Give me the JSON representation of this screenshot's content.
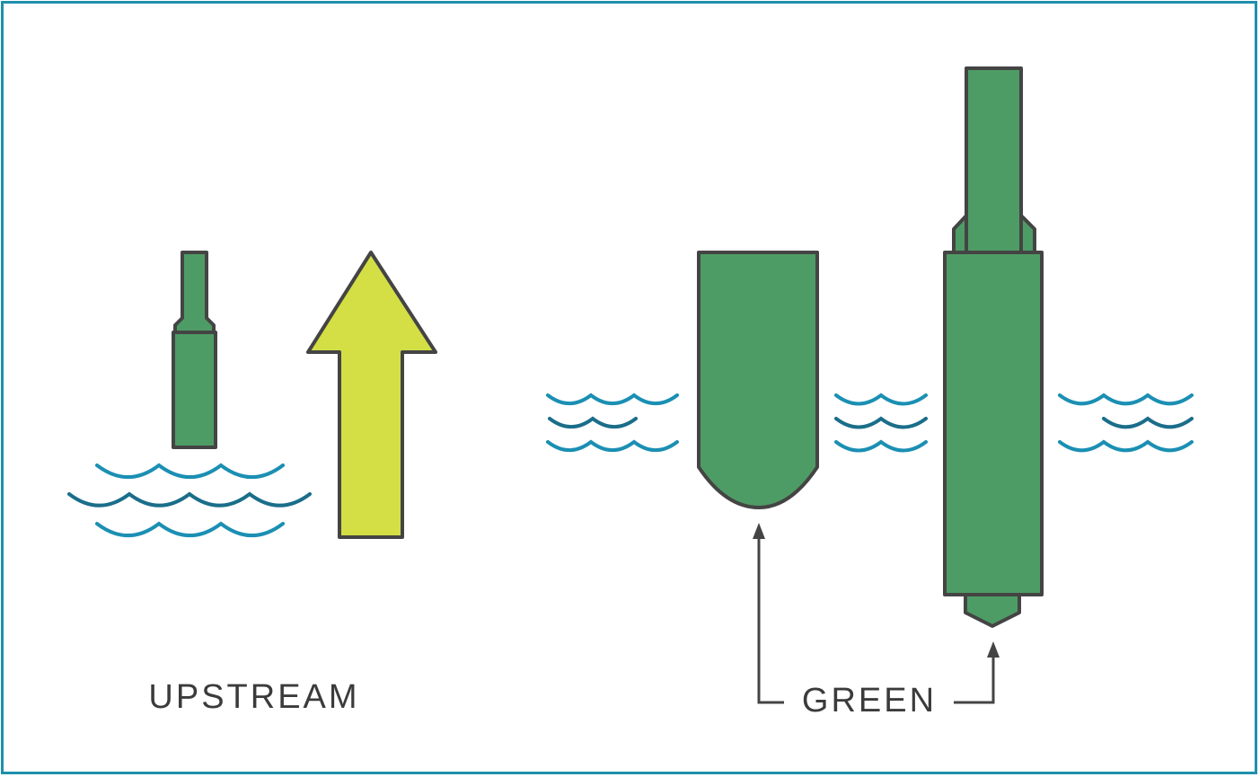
{
  "labels": {
    "upstream": "UPSTREAM",
    "green": "GREEN"
  }
}
